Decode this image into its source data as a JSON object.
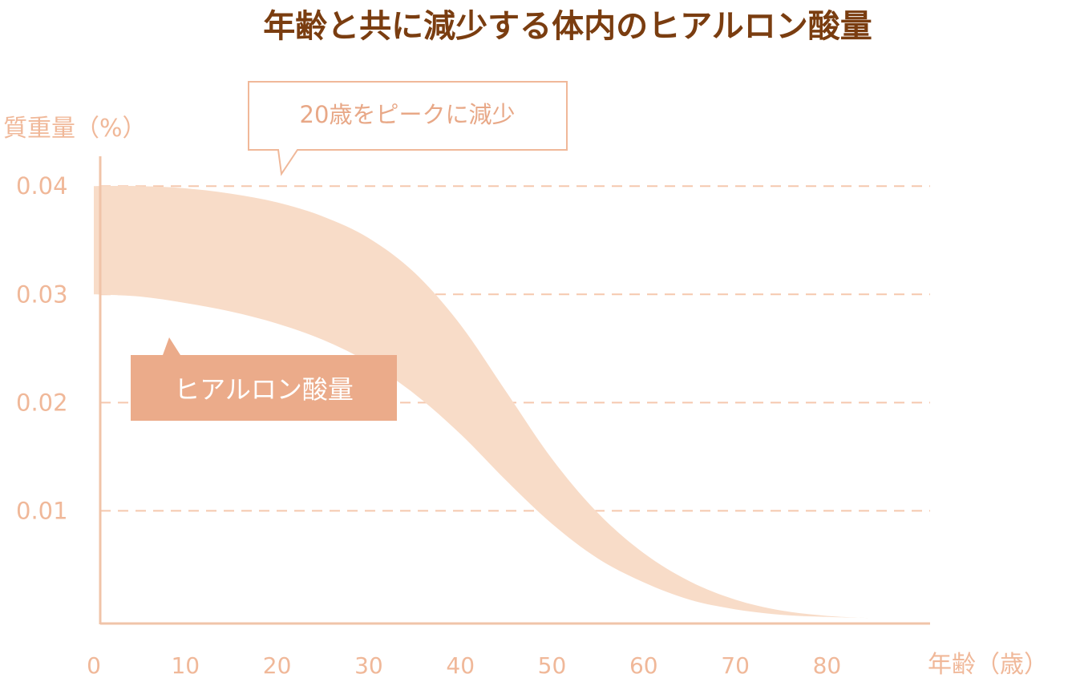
{
  "title": "年齢と共に減少する体内のヒアルロン酸量",
  "chart_data": {
    "type": "area",
    "title": "年齢と共に減少する体内のヒアルロン酸量",
    "xlabel": "年齢（歳）",
    "ylabel": "質重量（%）",
    "x_ticks": [
      0,
      10,
      20,
      30,
      40,
      50,
      60,
      70,
      80
    ],
    "y_ticks": [
      0.01,
      0.02,
      0.03,
      0.04
    ],
    "xlim": [
      0,
      91
    ],
    "ylim": [
      0,
      0.0395
    ],
    "grid": "dashed horizontal",
    "series": [
      {
        "name": "ヒアルロン酸量",
        "x": [
          0,
          5,
          10,
          15,
          20,
          25,
          30,
          35,
          40,
          45,
          50,
          55,
          60,
          65,
          70,
          75,
          80,
          84.5
        ],
        "upper": [
          0.04,
          0.04,
          0.0398,
          0.0393,
          0.0385,
          0.0372,
          0.0352,
          0.032,
          0.0272,
          0.021,
          0.0148,
          0.0098,
          0.0061,
          0.0035,
          0.0018,
          0.0008,
          0.0003,
          0.0001
        ],
        "lower": [
          0.03,
          0.0298,
          0.0292,
          0.0284,
          0.0273,
          0.0258,
          0.0237,
          0.0208,
          0.0171,
          0.0128,
          0.0088,
          0.0056,
          0.0034,
          0.0018,
          0.0009,
          0.0004,
          0.0002,
          0.0001
        ]
      }
    ],
    "annotations": [
      "20歳をピークに減少"
    ],
    "legend": [
      "ヒアルロン酸量"
    ]
  },
  "colors": {
    "axis": "#f0c4a9",
    "tick_label": "#f0b899",
    "gridline": "#f5c8ae",
    "band_fill": "#f8dcc8",
    "legend_box": "#ebab8a",
    "legend_text": "#ffffff",
    "callout_border": "#f0b899",
    "callout_text": "#e8a887",
    "title": "#7a3d10"
  }
}
